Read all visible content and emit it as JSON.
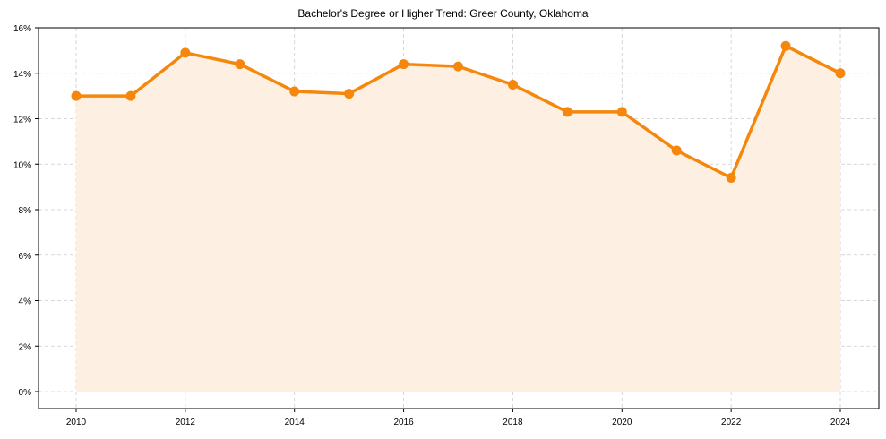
{
  "chart_data": {
    "type": "line",
    "title": "Bachelor's Degree or Higher Trend: Greer County, Oklahoma",
    "xlabel": "",
    "ylabel": "",
    "x": [
      2010,
      2011,
      2012,
      2013,
      2014,
      2015,
      2016,
      2017,
      2018,
      2019,
      2020,
      2021,
      2022,
      2023,
      2024
    ],
    "series": [
      {
        "name": "Bachelor's Degree or Higher (%)",
        "values": [
          13.0,
          13.0,
          14.9,
          14.4,
          13.2,
          13.1,
          14.4,
          14.3,
          13.5,
          12.3,
          12.3,
          10.6,
          9.4,
          15.2,
          14.0
        ],
        "color": "#f5870c",
        "fill": "#fdf0e2"
      }
    ],
    "xticks": [
      "2010",
      "2012",
      "2014",
      "2016",
      "2018",
      "2020",
      "2022",
      "2024"
    ],
    "yticks": [
      "0%",
      "2%",
      "4%",
      "6%",
      "8%",
      "10%",
      "12%",
      "14%",
      "16%"
    ],
    "xlim": [
      2009.3,
      2024.7
    ],
    "ylim": [
      -0.75,
      16
    ],
    "grid": true,
    "legend": "none"
  }
}
